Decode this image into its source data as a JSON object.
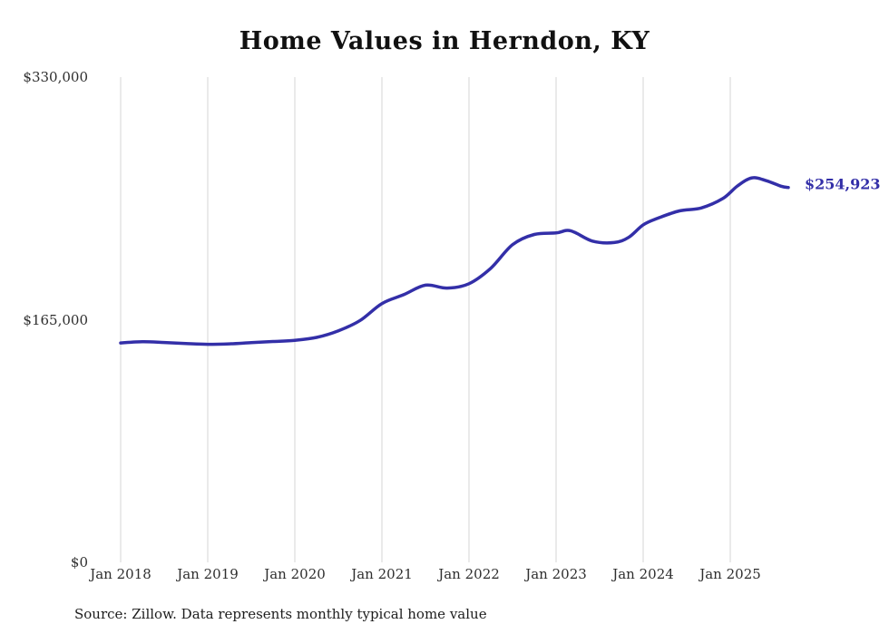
{
  "page": {
    "source_note": "Source: Zillow. Data represents monthly typical home value"
  },
  "chart_data": {
    "type": "line",
    "title": "Home Values in Herndon, KY",
    "xlabel": "",
    "ylabel": "",
    "ylim": [
      0,
      330000
    ],
    "grid": "vertical-only",
    "legend": "none",
    "line_color": "#332fa8",
    "grid_color": "#d6d6d6",
    "end_label": "$254,923",
    "end_value": 254923,
    "yticks": [
      {
        "label": "$0",
        "value": 0
      },
      {
        "label": "$165,000",
        "value": 165000
      },
      {
        "label": "$330,000",
        "value": 330000
      }
    ],
    "xticks": [
      {
        "label": "Jan 2018",
        "month": "2018-01"
      },
      {
        "label": "Jan 2019",
        "month": "2019-01"
      },
      {
        "label": "Jan 2020",
        "month": "2020-01"
      },
      {
        "label": "Jan 2021",
        "month": "2021-01"
      },
      {
        "label": "Jan 2022",
        "month": "2022-01"
      },
      {
        "label": "Jan 2023",
        "month": "2023-01"
      },
      {
        "label": "Jan 2024",
        "month": "2024-01"
      },
      {
        "label": "Jan 2025",
        "month": "2025-01"
      }
    ],
    "series": [
      {
        "name": "Typical home value",
        "x": [
          "2018-01",
          "2018-04",
          "2018-07",
          "2018-10",
          "2019-01",
          "2019-04",
          "2019-07",
          "2019-10",
          "2020-01",
          "2020-04",
          "2020-07",
          "2020-10",
          "2021-01",
          "2021-04",
          "2021-07",
          "2021-10",
          "2022-01",
          "2022-04",
          "2022-07",
          "2022-10",
          "2023-01",
          "2023-03",
          "2023-06",
          "2023-09",
          "2023-11",
          "2024-01",
          "2024-03",
          "2024-06",
          "2024-09",
          "2024-12",
          "2025-02",
          "2025-04",
          "2025-06",
          "2025-08",
          "2025-09"
        ],
        "values": [
          149200,
          150000,
          149500,
          148800,
          148300,
          148600,
          149400,
          150200,
          151000,
          153000,
          157500,
          164500,
          176000,
          182000,
          188500,
          186500,
          189500,
          200000,
          216000,
          223000,
          224000,
          225500,
          218500,
          217500,
          221000,
          229500,
          234000,
          239000,
          241000,
          247500,
          256000,
          261500,
          259500,
          255800,
          254923
        ]
      }
    ]
  }
}
